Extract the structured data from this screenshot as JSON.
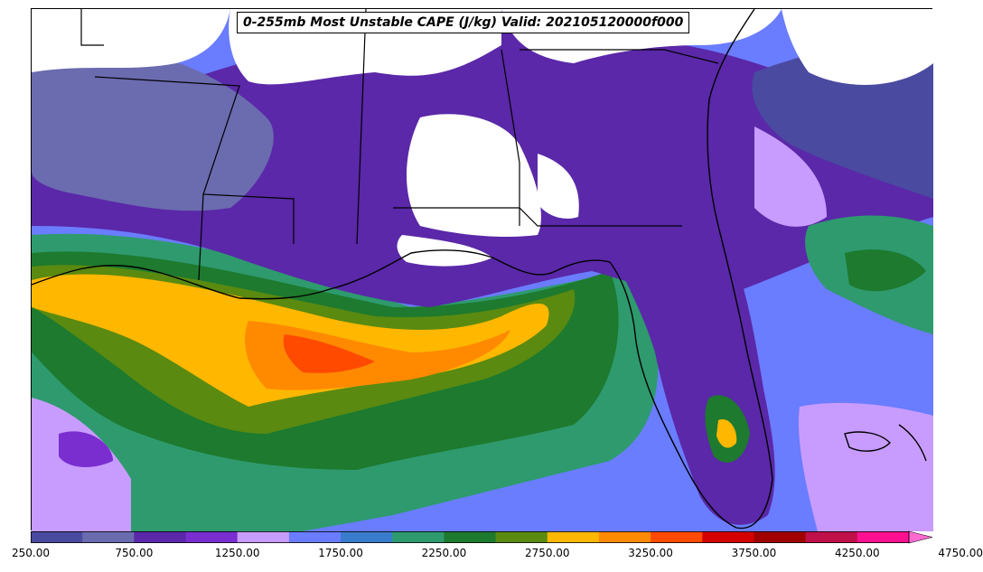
{
  "title": "0-255mb Most Unstable CAPE (J/kg) Valid: 202105120000f000",
  "colorbar": {
    "colors": [
      "#4a4aa0",
      "#6b6bb0",
      "#5a28a8",
      "#7a2ed0",
      "#c89cff",
      "#6a7cff",
      "#3a7ccc",
      "#2e9a6e",
      "#1d7a2e",
      "#5a8a10",
      "#ffb700",
      "#ff8a00",
      "#ff4a00",
      "#d40000",
      "#a00000",
      "#c0104a",
      "#ff1090",
      "#ff6ad0"
    ],
    "levels": [
      250,
      500,
      750,
      1000,
      1250,
      1500,
      1750,
      2000,
      2250,
      2500,
      2750,
      3000,
      3250,
      3500,
      3750,
      4000,
      4250,
      4500,
      4750
    ],
    "labels": [
      "250.00",
      "750.00",
      "1250.00",
      "1750.00",
      "2250.00",
      "2750.00",
      "3250.00",
      "3750.00",
      "4250.00",
      "4750.00"
    ],
    "extend": "max"
  }
}
